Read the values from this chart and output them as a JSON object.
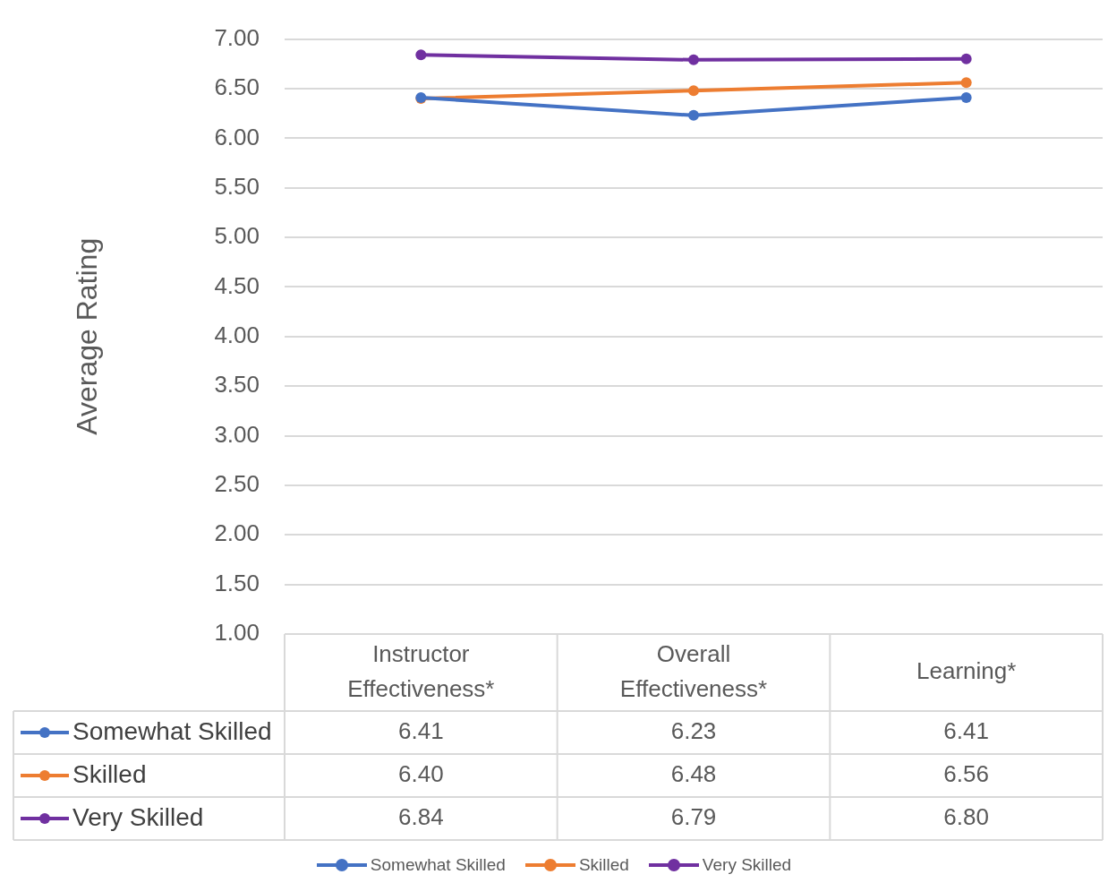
{
  "chart_data": {
    "type": "line",
    "ylabel": "Average Rating",
    "categories": [
      "Instructor Effectiveness*",
      "Overall Effectiveness*",
      "Learning*"
    ],
    "series": [
      {
        "name": "Somewhat Skilled",
        "color": "#4472c4",
        "values": [
          6.41,
          6.23,
          6.41
        ],
        "value_labels": [
          "6.41",
          "6.23",
          "6.41"
        ]
      },
      {
        "name": "Skilled",
        "color": "#ed7d31",
        "values": [
          6.4,
          6.48,
          6.56
        ],
        "value_labels": [
          "6.40",
          "6.48",
          "6.56"
        ]
      },
      {
        "name": "Very Skilled",
        "color": "#7030a0",
        "values": [
          6.84,
          6.79,
          6.8
        ],
        "value_labels": [
          "6.84",
          "6.79",
          "6.80"
        ]
      }
    ],
    "ylim": [
      1,
      7
    ],
    "yticks": [
      {
        "value": 1,
        "label": "1.00"
      },
      {
        "value": 1.5,
        "label": "1.50"
      },
      {
        "value": 2,
        "label": "2.00"
      },
      {
        "value": 2.5,
        "label": "2.50"
      },
      {
        "value": 3,
        "label": "3.00"
      },
      {
        "value": 3.5,
        "label": "3.50"
      },
      {
        "value": 4,
        "label": "4.00"
      },
      {
        "value": 4.5,
        "label": "4.50"
      },
      {
        "value": 5,
        "label": "5.00"
      },
      {
        "value": 5.5,
        "label": "5.50"
      },
      {
        "value": 6,
        "label": "6.00"
      },
      {
        "value": 6.5,
        "label": "6.50"
      },
      {
        "value": 7,
        "label": "7.00"
      }
    ],
    "grid": "y",
    "legend": "bottom",
    "marker": "circle",
    "line_style": "solid"
  }
}
